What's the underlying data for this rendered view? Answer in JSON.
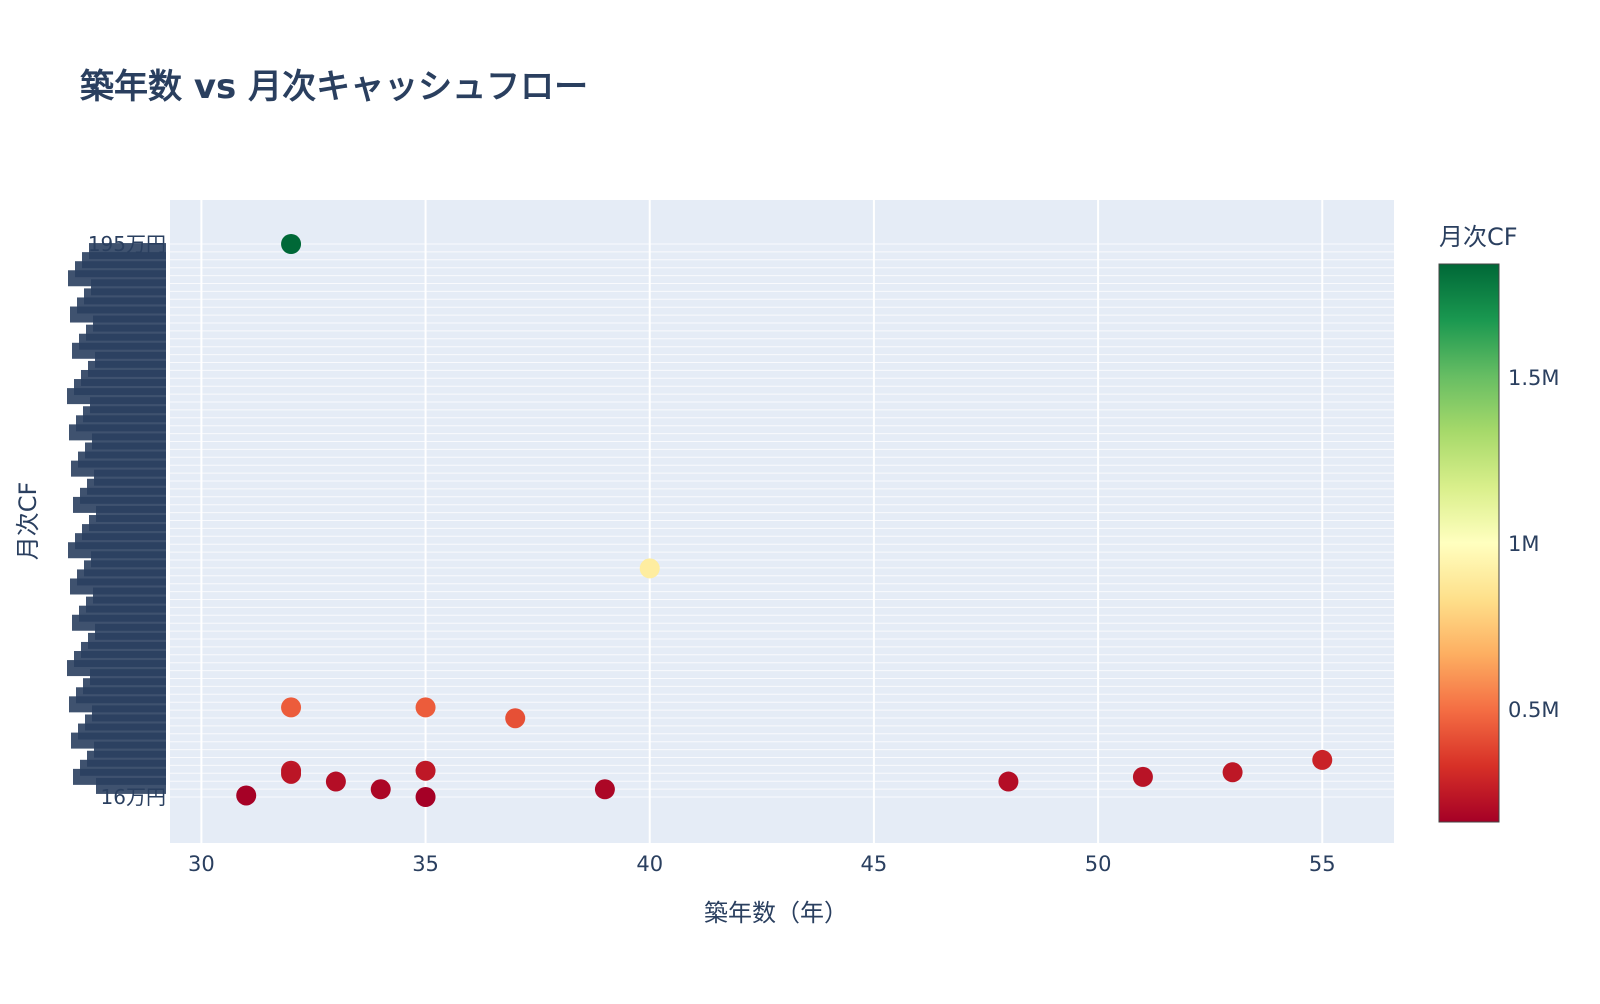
{
  "chart_data": {
    "type": "scatter",
    "title": "築年数 vs 月次キャッシュフロー",
    "xlabel": "築年数（年）",
    "ylabel": "月次CF",
    "xlim": [
      29.3,
      56.6
    ],
    "x_ticks": [
      30,
      35,
      40,
      45,
      50,
      55
    ],
    "x_tick_labels": [
      "30",
      "35",
      "40",
      "45",
      "50",
      "55"
    ],
    "y_axis": "categorical",
    "y_labels_visible": [
      "195万円",
      "16万円"
    ],
    "points": [
      {
        "x": 32,
        "y": 1950000
      },
      {
        "x": 40,
        "y": 900000
      },
      {
        "x": 32,
        "y": 450000
      },
      {
        "x": 35,
        "y": 450000
      },
      {
        "x": 37,
        "y": 415000
      },
      {
        "x": 55,
        "y": 280000
      },
      {
        "x": 32,
        "y": 245000
      },
      {
        "x": 35,
        "y": 245000
      },
      {
        "x": 32,
        "y": 235000
      },
      {
        "x": 53,
        "y": 240000
      },
      {
        "x": 51,
        "y": 225000
      },
      {
        "x": 33,
        "y": 210000
      },
      {
        "x": 48,
        "y": 210000
      },
      {
        "x": 34,
        "y": 185000
      },
      {
        "x": 39,
        "y": 185000
      },
      {
        "x": 31,
        "y": 165000
      },
      {
        "x": 35,
        "y": 160000
      }
    ],
    "colorbar": {
      "title": "月次CF",
      "colorscale": "RdYlGn",
      "range": [
        160000,
        1840000
      ],
      "ticks": [
        500000,
        1000000,
        1500000
      ],
      "tick_labels": [
        "0.5M",
        "1M",
        "1.5M"
      ]
    },
    "grid": true,
    "legend": "none"
  },
  "colors": {
    "plot_bg": "#e5ecf6",
    "grid": "#ffffff",
    "text": "#2a3f5f"
  }
}
